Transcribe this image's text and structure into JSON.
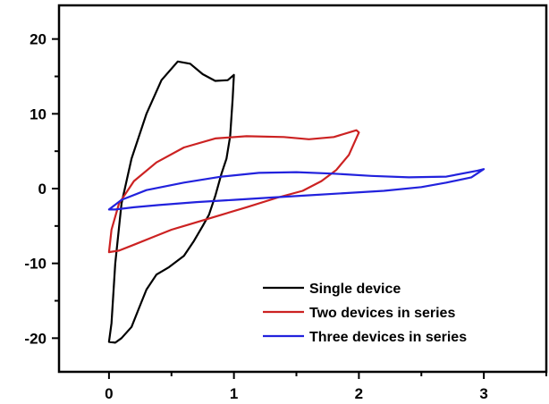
{
  "chart_data": {
    "type": "line",
    "title": "",
    "xlabel": "",
    "ylabel": "",
    "xlim": [
      -0.4,
      3.5
    ],
    "ylim": [
      -24.5,
      24.5
    ],
    "x_ticks": [
      0,
      1,
      2,
      3
    ],
    "x_tick_labels": [
      "0",
      "1",
      "2",
      "3"
    ],
    "y_ticks": [
      -20,
      -10,
      0,
      10,
      20
    ],
    "y_tick_labels": [
      "-20",
      "-10",
      "0",
      "10",
      "20"
    ],
    "x_minor_step": 0.5,
    "y_minor_step": 5,
    "grid": false,
    "legend_position": "bottom-right",
    "series": [
      {
        "name": "Single device",
        "color": "#000000",
        "closed": true,
        "points": [
          [
            0.0,
            -20.5
          ],
          [
            0.02,
            -18.0
          ],
          [
            0.05,
            -10.0
          ],
          [
            0.1,
            -2.0
          ],
          [
            0.18,
            4.0
          ],
          [
            0.3,
            10.0
          ],
          [
            0.42,
            14.5
          ],
          [
            0.55,
            17.0
          ],
          [
            0.65,
            16.7
          ],
          [
            0.75,
            15.3
          ],
          [
            0.85,
            14.4
          ],
          [
            0.95,
            14.5
          ],
          [
            1.0,
            15.2
          ],
          [
            0.99,
            12.0
          ],
          [
            0.97,
            7.0
          ],
          [
            0.94,
            4.0
          ],
          [
            0.9,
            2.0
          ],
          [
            0.85,
            -1.0
          ],
          [
            0.8,
            -3.5
          ],
          [
            0.75,
            -5.0
          ],
          [
            0.68,
            -7.0
          ],
          [
            0.6,
            -9.0
          ],
          [
            0.48,
            -10.5
          ],
          [
            0.38,
            -11.5
          ],
          [
            0.3,
            -13.5
          ],
          [
            0.24,
            -16.0
          ],
          [
            0.18,
            -18.5
          ],
          [
            0.1,
            -20.0
          ],
          [
            0.05,
            -20.6
          ],
          [
            0.0,
            -20.5
          ]
        ]
      },
      {
        "name": "Two devices in series",
        "color": "#cc2222",
        "closed": true,
        "points": [
          [
            0.0,
            -8.5
          ],
          [
            0.02,
            -5.5
          ],
          [
            0.08,
            -2.0
          ],
          [
            0.2,
            1.0
          ],
          [
            0.38,
            3.5
          ],
          [
            0.6,
            5.5
          ],
          [
            0.85,
            6.7
          ],
          [
            1.1,
            7.0
          ],
          [
            1.4,
            6.9
          ],
          [
            1.6,
            6.6
          ],
          [
            1.8,
            6.9
          ],
          [
            1.98,
            7.8
          ],
          [
            2.0,
            7.5
          ],
          [
            1.92,
            4.5
          ],
          [
            1.82,
            2.5
          ],
          [
            1.7,
            1.0
          ],
          [
            1.55,
            -0.3
          ],
          [
            1.35,
            -1.2
          ],
          [
            1.1,
            -2.5
          ],
          [
            0.9,
            -3.5
          ],
          [
            0.7,
            -4.5
          ],
          [
            0.5,
            -5.5
          ],
          [
            0.35,
            -6.5
          ],
          [
            0.2,
            -7.5
          ],
          [
            0.08,
            -8.3
          ],
          [
            0.0,
            -8.5
          ]
        ]
      },
      {
        "name": "Three devices in series",
        "color": "#2222dd",
        "closed": true,
        "points": [
          [
            0.0,
            -2.8
          ],
          [
            0.1,
            -1.5
          ],
          [
            0.3,
            -0.2
          ],
          [
            0.6,
            0.8
          ],
          [
            0.9,
            1.6
          ],
          [
            1.2,
            2.1
          ],
          [
            1.5,
            2.2
          ],
          [
            1.8,
            2.0
          ],
          [
            2.1,
            1.7
          ],
          [
            2.4,
            1.5
          ],
          [
            2.7,
            1.6
          ],
          [
            2.95,
            2.4
          ],
          [
            3.0,
            2.6
          ],
          [
            2.9,
            1.5
          ],
          [
            2.7,
            0.8
          ],
          [
            2.5,
            0.2
          ],
          [
            2.2,
            -0.3
          ],
          [
            1.9,
            -0.6
          ],
          [
            1.6,
            -0.9
          ],
          [
            1.3,
            -1.2
          ],
          [
            1.0,
            -1.5
          ],
          [
            0.7,
            -1.8
          ],
          [
            0.4,
            -2.2
          ],
          [
            0.2,
            -2.5
          ],
          [
            0.05,
            -2.8
          ],
          [
            0.0,
            -2.8
          ]
        ]
      }
    ]
  }
}
